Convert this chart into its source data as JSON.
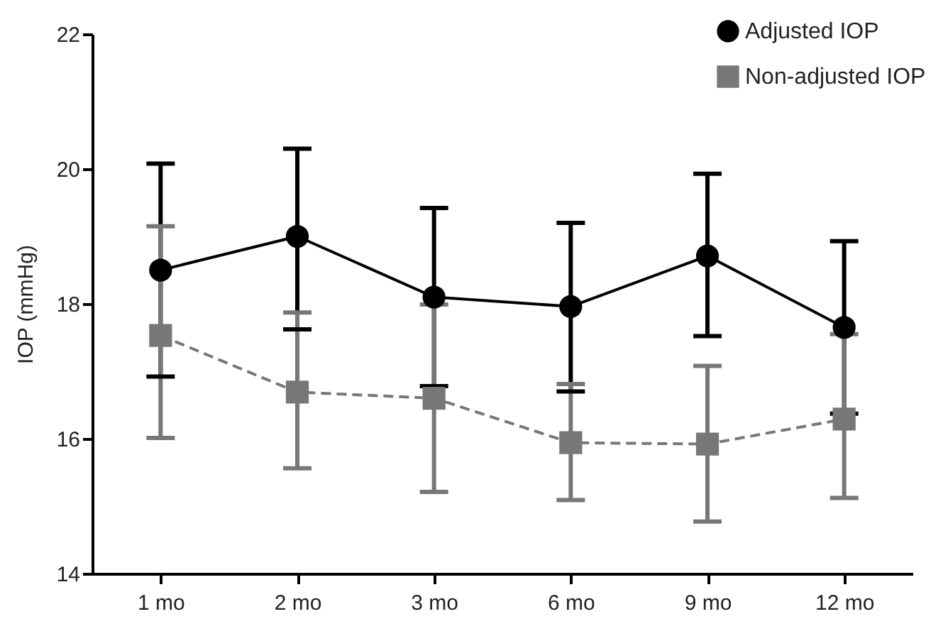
{
  "chart_data": {
    "type": "line",
    "ylabel": "IOP (mmHg)",
    "categories": [
      "1 mo",
      "2 mo",
      "3 mo",
      "6 mo",
      "9 mo",
      "12 mo"
    ],
    "ylim": [
      14,
      22
    ],
    "yticks": [
      14,
      16,
      18,
      20,
      22
    ],
    "grid": false,
    "legend": "top right",
    "series": [
      {
        "name": "Adjusted IOP",
        "color": "#000000",
        "marker": "circle",
        "line_style": "solid",
        "values": [
          18.5,
          19.0,
          18.1,
          17.96,
          18.71,
          17.65
        ],
        "errors": [
          [
            16.92,
            20.08
          ],
          [
            17.62,
            20.3
          ],
          1.32,
          [
            16.7,
            19.2
          ],
          [
            17.52,
            19.93
          ],
          1.28
        ]
      },
      {
        "name": "Non-adjusted IOP",
        "color": "#777777",
        "marker": "square",
        "line_style": "dashed",
        "values": [
          17.53,
          16.69,
          16.6,
          15.94,
          15.92,
          16.29
        ],
        "errors": [
          [
            16.01,
            19.15
          ],
          [
            15.56,
            17.87
          ],
          1.39,
          [
            15.09,
            16.81
          ],
          [
            14.77,
            17.08
          ],
          [
            15.12,
            17.55
          ]
        ]
      }
    ]
  }
}
